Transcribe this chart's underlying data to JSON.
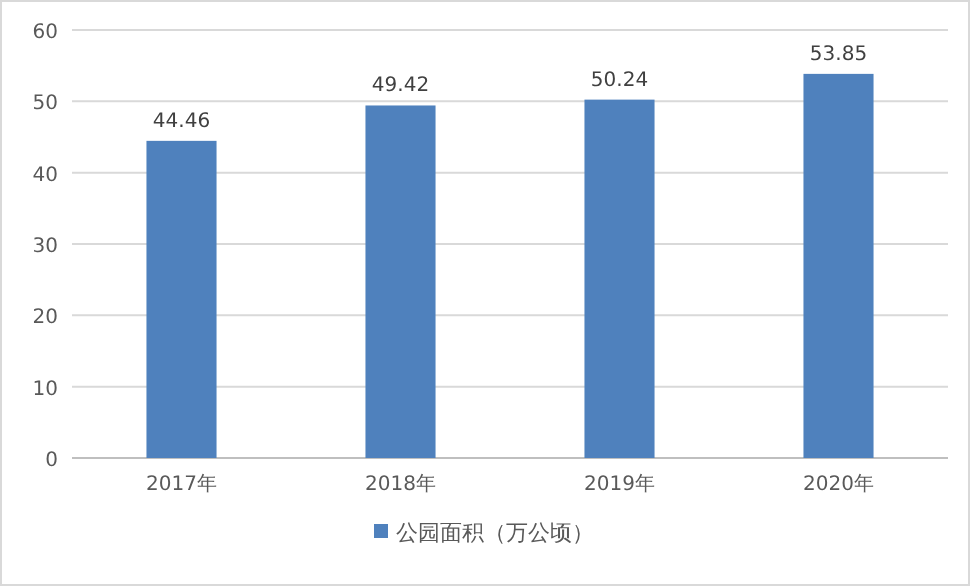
{
  "chart_data": {
    "type": "bar",
    "categories": [
      "2017年",
      "2018年",
      "2019年",
      "2020年"
    ],
    "series": [
      {
        "name": "公园面积（万公顷）",
        "color": "#4f81bd",
        "values": [
          44.46,
          49.42,
          50.24,
          53.85
        ]
      }
    ],
    "ylim": [
      0,
      60
    ],
    "yticks": [
      0,
      10,
      20,
      30,
      40,
      50,
      60
    ],
    "grid": "y",
    "legend": "bottom",
    "data_labels": true
  }
}
